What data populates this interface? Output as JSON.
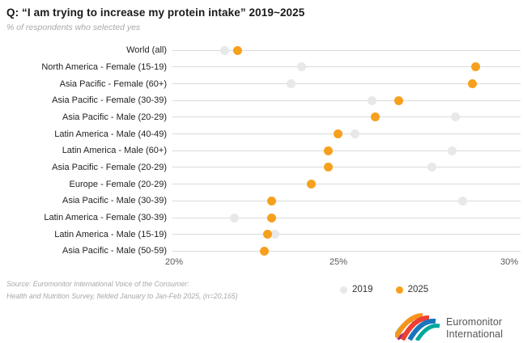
{
  "header": {
    "title": "Q: “I am trying to increase my protein intake” 2019~2025",
    "subtitle": "% of respondents who selected yes"
  },
  "chart_data": {
    "type": "scatter",
    "subtype": "horizontal-dot-plot",
    "categories": [
      "World (all)",
      "North America - Female (15-19)",
      "Asia Pacific - Female (60+)",
      "Asia Pacific - Female (30-39)",
      "Asia Pacific - Male (20-29)",
      "Latin America - Male (40-49)",
      "Latin America - Male (60+)",
      "Asia Pacific - Female (20-29)",
      "Europe - Female (20-29)",
      "Asia Pacific - Male (30-39)",
      "Latin America - Female (30-39)",
      "Latin America - Male (15-19)",
      "Asia Pacific - Male (50-59)"
    ],
    "series": [
      {
        "name": "2019",
        "color": "#e8e8e8",
        "values": [
          21.5,
          23.8,
          23.5,
          25.9,
          28.4,
          25.4,
          28.3,
          27.7,
          null,
          28.6,
          21.8,
          23.0,
          null
        ]
      },
      {
        "name": "2025",
        "color": "#f6a01e",
        "values": [
          21.9,
          29.0,
          28.9,
          26.7,
          26.0,
          24.9,
          24.6,
          24.6,
          24.1,
          22.9,
          22.9,
          22.8,
          22.7
        ]
      }
    ],
    "xlim": [
      20,
      30
    ],
    "x_ticks": [
      "20%",
      "25%",
      "30%"
    ],
    "x_tick_values": [
      20,
      25,
      30
    ],
    "grid": "horizontal row lines only",
    "gridline_color": "#dadada",
    "legend_position": "bottom"
  },
  "legend": {
    "items": [
      {
        "label": "2019",
        "color": "#e8e8e8"
      },
      {
        "label": "2025",
        "color": "#f6a01e"
      }
    ]
  },
  "source": {
    "line1": "Source: Euromonitor International Voice of the Consumer:",
    "line2": "Health and Nutrition Survey, fielded January to Jan-Feb 2025, (n=20,165)"
  },
  "logo": {
    "line1": "Euromonitor",
    "line2": "International"
  }
}
